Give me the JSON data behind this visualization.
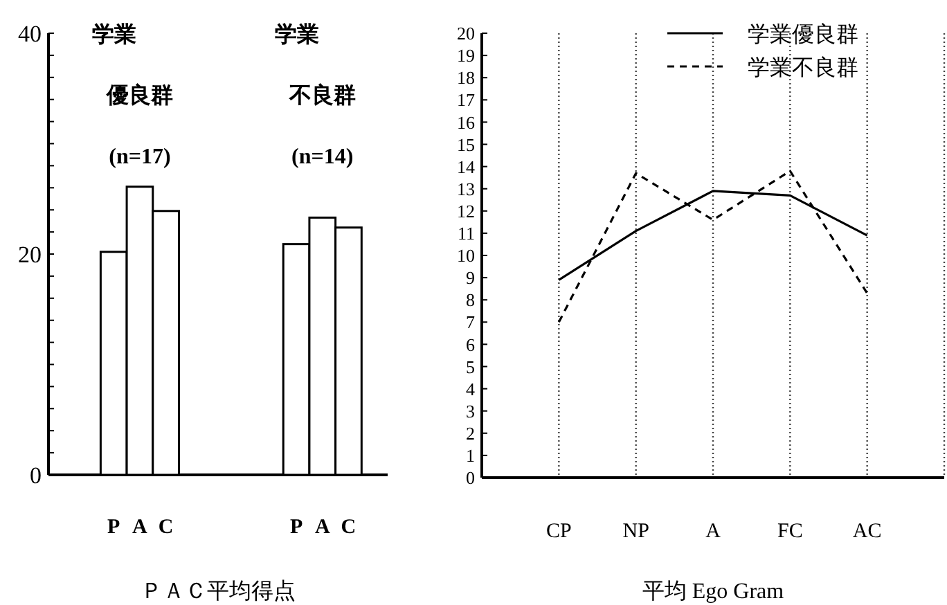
{
  "chart_data": [
    {
      "type": "bar",
      "xlabel": "ＰＡＣ平均得点",
      "categories": [
        null,
        null,
        "P",
        "A",
        "C",
        null,
        null,
        null,
        null,
        "P",
        "A",
        "C",
        null
      ],
      "values": [
        null,
        null,
        20.2,
        26.1,
        23.9,
        null,
        null,
        null,
        null,
        20.9,
        23.3,
        22.4,
        null
      ],
      "color": "#ffffff",
      "ylim": [
        0,
        40
      ],
      "yticks": [
        0,
        {
          "value": 2,
          "label": null
        },
        {
          "value": 4,
          "label": null
        },
        {
          "value": 6,
          "label": null
        },
        {
          "value": 8,
          "label": null
        },
        {
          "value": 10,
          "label": null
        },
        {
          "value": 12,
          "label": null
        },
        {
          "value": 14,
          "label": null
        },
        {
          "value": 16,
          "label": null
        },
        {
          "value": 18,
          "label": null
        },
        20,
        {
          "value": 22,
          "label": null
        },
        {
          "value": 24,
          "label": null
        },
        {
          "value": 26,
          "label": null
        },
        {
          "value": 28,
          "label": null
        },
        {
          "value": 30,
          "label": null
        },
        {
          "value": 32,
          "label": null
        },
        {
          "value": 34,
          "label": null
        },
        {
          "value": 36,
          "label": null
        },
        {
          "value": 38,
          "label": null
        },
        40
      ],
      "annotations": [
        "学業",
        "優良群",
        "(n=17)",
        "学業",
        "不良群",
        "(n=14)"
      ]
    },
    {
      "type": "line",
      "xlabel": "平均 Ego Gram",
      "categories": [
        "CP",
        "NP",
        "A",
        "FC",
        "AC"
      ],
      "series": [
        {
          "name": "学業優良群",
          "color": "#000000",
          "line_style": "solid",
          "values": [
            8.9,
            11.1,
            12.9,
            12.7,
            10.9
          ]
        },
        {
          "name": "学業不良群",
          "color": "#000000",
          "line_style": "dashed",
          "values": [
            7.0,
            13.7,
            11.6,
            13.8,
            8.3
          ]
        }
      ],
      "ylim": [
        0,
        20
      ],
      "yticks": [
        0,
        1,
        2,
        3,
        4,
        5,
        6,
        7,
        8,
        9,
        10,
        11,
        12,
        13,
        14,
        15,
        16,
        17,
        18,
        19,
        20
      ],
      "grid": "x",
      "legend": "top right"
    }
  ]
}
